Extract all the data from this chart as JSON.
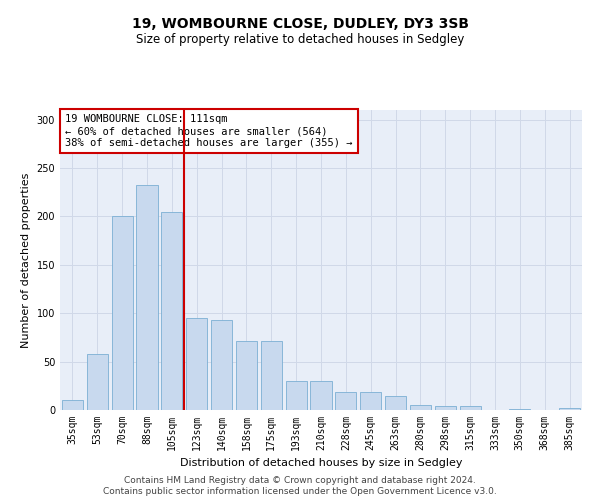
{
  "title": "19, WOMBOURNE CLOSE, DUDLEY, DY3 3SB",
  "subtitle": "Size of property relative to detached houses in Sedgley",
  "xlabel": "Distribution of detached houses by size in Sedgley",
  "ylabel": "Number of detached properties",
  "categories": [
    "35sqm",
    "53sqm",
    "70sqm",
    "88sqm",
    "105sqm",
    "123sqm",
    "140sqm",
    "158sqm",
    "175sqm",
    "193sqm",
    "210sqm",
    "228sqm",
    "245sqm",
    "263sqm",
    "280sqm",
    "298sqm",
    "315sqm",
    "333sqm",
    "350sqm",
    "368sqm",
    "385sqm"
  ],
  "values": [
    10,
    58,
    200,
    233,
    205,
    95,
    93,
    71,
    71,
    30,
    30,
    19,
    19,
    14,
    5,
    4,
    4,
    0,
    1,
    0,
    2
  ],
  "bar_color": "#c8d9ee",
  "bar_edge_color": "#7bafd4",
  "vline_color": "#cc0000",
  "vline_pos": 4.5,
  "annotation_text": "19 WOMBOURNE CLOSE: 111sqm\n← 60% of detached houses are smaller (564)\n38% of semi-detached houses are larger (355) →",
  "annotation_box_color": "#ffffff",
  "annotation_box_edge": "#cc0000",
  "ylim": [
    0,
    310
  ],
  "yticks": [
    0,
    50,
    100,
    150,
    200,
    250,
    300
  ],
  "grid_color": "#d0d8e8",
  "bg_color": "#e8eef8",
  "footer1": "Contains HM Land Registry data © Crown copyright and database right 2024.",
  "footer2": "Contains public sector information licensed under the Open Government Licence v3.0.",
  "title_fontsize": 10,
  "subtitle_fontsize": 8.5,
  "xlabel_fontsize": 8,
  "ylabel_fontsize": 8,
  "tick_fontsize": 7,
  "annotation_fontsize": 7.5,
  "footer_fontsize": 6.5
}
